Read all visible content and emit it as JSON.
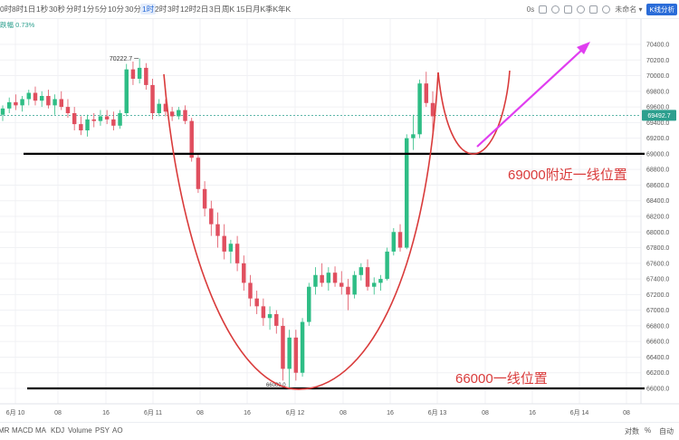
{
  "toolbar": {
    "timeframes": [
      "0时",
      "8时",
      "1日",
      "1秒",
      "30秒",
      "分时",
      "1分",
      "5分",
      "10分",
      "30分",
      "1时",
      "2时",
      "3时",
      "12时",
      "2日",
      "3日",
      "周K",
      "15日",
      "月K",
      "季K",
      "年K"
    ],
    "active_timeframe": "1时",
    "right": {
      "seconds": "0s",
      "unnamed": "未命名",
      "kline_analysis": "K线分析"
    }
  },
  "legend": {
    "text": "跌幅 0.73%"
  },
  "bottom": {
    "indicators": [
      "MR",
      "MACD",
      "MA",
      "KDJ",
      "Volume",
      "PSY",
      "AO"
    ],
    "right": {
      "log": "对数",
      "percent": "%",
      "auto": "自动"
    }
  },
  "chart_data": {
    "type": "candlestick",
    "y_range": [
      66000,
      70500
    ],
    "y_ticks": [
      "70400.0",
      "70200.0",
      "70000.0",
      "69800.0",
      "69600.0",
      "69400.0",
      "69200.0",
      "69000.0",
      "68800.0",
      "68600.0",
      "68400.0",
      "68200.0",
      "68000.0",
      "67800.0",
      "67600.0",
      "67400.0",
      "67200.0",
      "67000.0",
      "66800.0",
      "66600.0",
      "66400.0",
      "66200.0",
      "66000.0"
    ],
    "x_ticks": [
      "6月 10",
      "08",
      "16",
      "6月 11",
      "08",
      "16",
      "6月 12",
      "08",
      "16",
      "6月 13",
      "08",
      "16",
      "6月 14",
      "08"
    ],
    "last_price": "69492.7",
    "high_label": "70222.7",
    "low_label": "66000.0",
    "candles": [
      {
        "o": 69500,
        "h": 69620,
        "l": 69420,
        "c": 69580
      },
      {
        "o": 69580,
        "h": 69720,
        "l": 69520,
        "c": 69660
      },
      {
        "o": 69660,
        "h": 69760,
        "l": 69560,
        "c": 69620
      },
      {
        "o": 69620,
        "h": 69740,
        "l": 69540,
        "c": 69700
      },
      {
        "o": 69700,
        "h": 69820,
        "l": 69620,
        "c": 69780
      },
      {
        "o": 69780,
        "h": 69860,
        "l": 69620,
        "c": 69680
      },
      {
        "o": 69680,
        "h": 69800,
        "l": 69600,
        "c": 69740
      },
      {
        "o": 69740,
        "h": 69820,
        "l": 69580,
        "c": 69620
      },
      {
        "o": 69620,
        "h": 69760,
        "l": 69500,
        "c": 69700
      },
      {
        "o": 69700,
        "h": 69800,
        "l": 69560,
        "c": 69600
      },
      {
        "o": 69600,
        "h": 69700,
        "l": 69460,
        "c": 69520
      },
      {
        "o": 69520,
        "h": 69600,
        "l": 69300,
        "c": 69380
      },
      {
        "o": 69380,
        "h": 69480,
        "l": 69240,
        "c": 69300
      },
      {
        "o": 69300,
        "h": 69500,
        "l": 69220,
        "c": 69440
      },
      {
        "o": 69440,
        "h": 69520,
        "l": 69340,
        "c": 69420
      },
      {
        "o": 69420,
        "h": 69560,
        "l": 69360,
        "c": 69480
      },
      {
        "o": 69480,
        "h": 69560,
        "l": 69380,
        "c": 69440
      },
      {
        "o": 69440,
        "h": 69540,
        "l": 69300,
        "c": 69360
      },
      {
        "o": 69360,
        "h": 69560,
        "l": 69320,
        "c": 69520
      },
      {
        "o": 69520,
        "h": 70150,
        "l": 69480,
        "c": 70080
      },
      {
        "o": 70080,
        "h": 70180,
        "l": 69880,
        "c": 69960
      },
      {
        "o": 69960,
        "h": 70220,
        "l": 69900,
        "c": 70100
      },
      {
        "o": 70100,
        "h": 70160,
        "l": 69820,
        "c": 69880
      },
      {
        "o": 69880,
        "h": 69960,
        "l": 69440,
        "c": 69520
      },
      {
        "o": 69520,
        "h": 69700,
        "l": 69480,
        "c": 69640
      },
      {
        "o": 69640,
        "h": 69700,
        "l": 69480,
        "c": 69540
      },
      {
        "o": 69540,
        "h": 69600,
        "l": 69420,
        "c": 69480
      },
      {
        "o": 69480,
        "h": 69600,
        "l": 69440,
        "c": 69560
      },
      {
        "o": 69560,
        "h": 69620,
        "l": 69380,
        "c": 69420
      },
      {
        "o": 69420,
        "h": 69460,
        "l": 68900,
        "c": 68950
      },
      {
        "o": 68950,
        "h": 69000,
        "l": 68500,
        "c": 68550
      },
      {
        "o": 68550,
        "h": 68650,
        "l": 68200,
        "c": 68300
      },
      {
        "o": 68300,
        "h": 68400,
        "l": 67950,
        "c": 68100
      },
      {
        "o": 68100,
        "h": 68250,
        "l": 67800,
        "c": 67950
      },
      {
        "o": 67950,
        "h": 68100,
        "l": 67650,
        "c": 67750
      },
      {
        "o": 67750,
        "h": 67900,
        "l": 67600,
        "c": 67850
      },
      {
        "o": 67850,
        "h": 67950,
        "l": 67500,
        "c": 67600
      },
      {
        "o": 67600,
        "h": 67700,
        "l": 67250,
        "c": 67350
      },
      {
        "o": 67350,
        "h": 67450,
        "l": 67050,
        "c": 67150
      },
      {
        "o": 67150,
        "h": 67250,
        "l": 66950,
        "c": 67050
      },
      {
        "o": 67050,
        "h": 67150,
        "l": 66800,
        "c": 66900
      },
      {
        "o": 66900,
        "h": 67050,
        "l": 66750,
        "c": 66950
      },
      {
        "o": 66950,
        "h": 67000,
        "l": 66700,
        "c": 66800
      },
      {
        "o": 66800,
        "h": 66900,
        "l": 66100,
        "c": 66250
      },
      {
        "o": 66250,
        "h": 66750,
        "l": 66000,
        "c": 66650
      },
      {
        "o": 66650,
        "h": 66750,
        "l": 66100,
        "c": 66200
      },
      {
        "o": 66200,
        "h": 66900,
        "l": 66150,
        "c": 66850
      },
      {
        "o": 66850,
        "h": 67350,
        "l": 66800,
        "c": 67300
      },
      {
        "o": 67300,
        "h": 67550,
        "l": 67200,
        "c": 67450
      },
      {
        "o": 67450,
        "h": 67600,
        "l": 67300,
        "c": 67350
      },
      {
        "o": 67350,
        "h": 67550,
        "l": 67250,
        "c": 67480
      },
      {
        "o": 67480,
        "h": 67560,
        "l": 67300,
        "c": 67350
      },
      {
        "o": 67350,
        "h": 67500,
        "l": 67200,
        "c": 67300
      },
      {
        "o": 67300,
        "h": 67400,
        "l": 67000,
        "c": 67200
      },
      {
        "o": 67200,
        "h": 67500,
        "l": 67150,
        "c": 67450
      },
      {
        "o": 67450,
        "h": 67600,
        "l": 67380,
        "c": 67550
      },
      {
        "o": 67550,
        "h": 67650,
        "l": 67250,
        "c": 67300
      },
      {
        "o": 67300,
        "h": 67420,
        "l": 67200,
        "c": 67350
      },
      {
        "o": 67350,
        "h": 67450,
        "l": 67250,
        "c": 67400
      },
      {
        "o": 67400,
        "h": 67800,
        "l": 67380,
        "c": 67750
      },
      {
        "o": 67750,
        "h": 68050,
        "l": 67700,
        "c": 68000
      },
      {
        "o": 68000,
        "h": 68100,
        "l": 67750,
        "c": 67800
      },
      {
        "o": 67800,
        "h": 69250,
        "l": 67780,
        "c": 69200
      },
      {
        "o": 69200,
        "h": 69500,
        "l": 69050,
        "c": 69250
      },
      {
        "o": 69250,
        "h": 69950,
        "l": 69200,
        "c": 69900
      },
      {
        "o": 69900,
        "h": 70050,
        "l": 69600,
        "c": 69650
      },
      {
        "o": 69650,
        "h": 69800,
        "l": 69250,
        "c": 69480
      }
    ],
    "annotations": {
      "support_high": {
        "price": 69000,
        "label": "69000附近一线位置"
      },
      "support_low": {
        "price": 66000,
        "label": "66000一线位置"
      },
      "last_price_line": 69492.7
    }
  }
}
